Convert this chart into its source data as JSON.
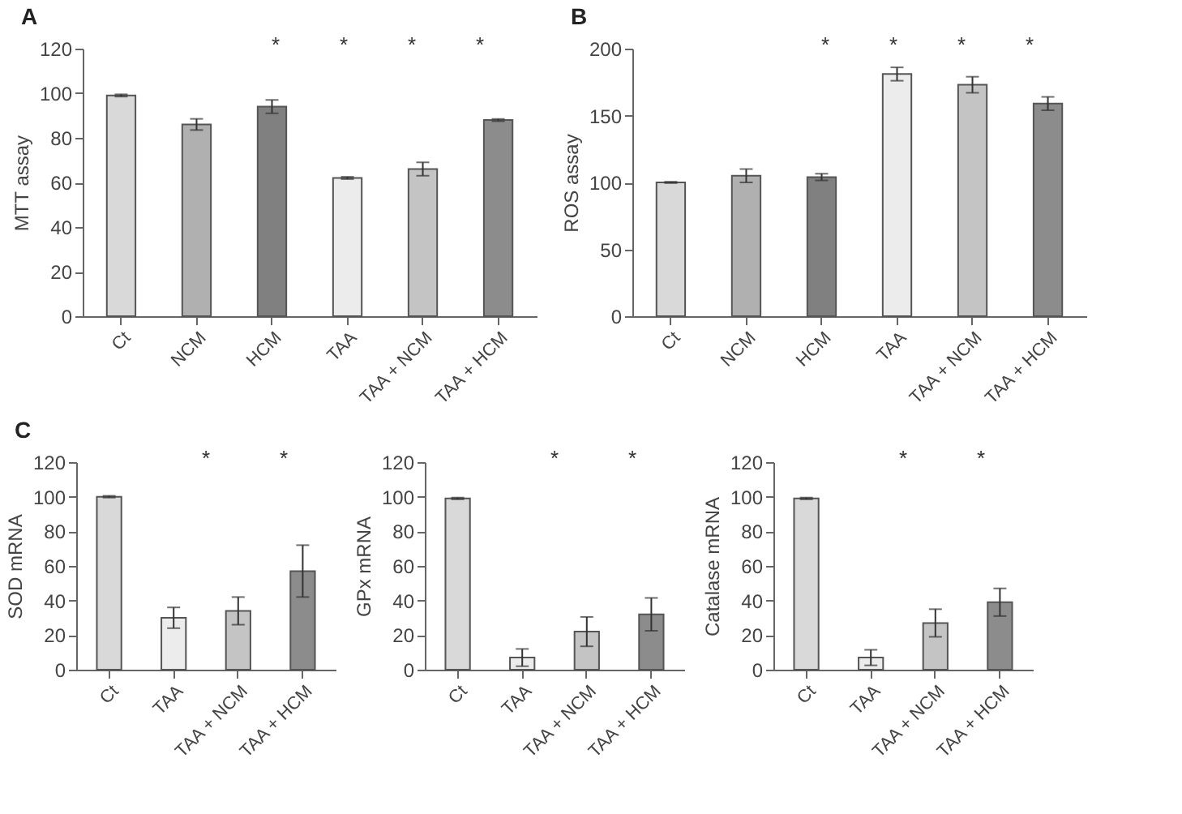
{
  "chart_data": [
    {
      "type": "bar",
      "title": "A",
      "ylabel": "MTT assay",
      "categories": [
        "Ct",
        "NCM",
        "HCM",
        "TAA",
        "TAA + NCM",
        "TAA + HCM"
      ],
      "values": [
        99,
        86,
        94,
        62,
        66,
        88
      ],
      "errors": [
        0.5,
        2.5,
        3,
        0.5,
        3,
        0.5
      ],
      "colors": [
        "#d9d9d9",
        "#b0b0b0",
        "#808080",
        "#ececec",
        "#c4c4c4",
        "#8c8c8c"
      ],
      "ylim": [
        0,
        120
      ],
      "yticks": [
        0,
        20,
        40,
        60,
        80,
        100,
        120
      ],
      "grid": false,
      "annotations": [
        "*",
        "*",
        "*",
        "*"
      ]
    },
    {
      "type": "bar",
      "title": "B",
      "ylabel": "ROS assay",
      "categories": [
        "Ct",
        "NCM",
        "HCM",
        "TAA",
        "TAA + NCM",
        "TAA + HCM"
      ],
      "values": [
        100,
        105,
        104,
        181,
        173,
        159
      ],
      "errors": [
        0.5,
        5,
        2.5,
        5,
        6,
        5
      ],
      "colors": [
        "#d9d9d9",
        "#b0b0b0",
        "#808080",
        "#ececec",
        "#c4c4c4",
        "#8c8c8c"
      ],
      "ylim": [
        0,
        200
      ],
      "yticks": [
        0,
        50,
        100,
        150,
        200
      ],
      "grid": false,
      "annotations": [
        "*",
        "*",
        "*",
        "*"
      ]
    },
    {
      "type": "bar",
      "title": "C",
      "ylabel": "SOD mRNA",
      "categories": [
        "Ct",
        "TAA",
        "TAA + NCM",
        "TAA + HCM"
      ],
      "values": [
        100,
        30,
        34,
        57
      ],
      "errors": [
        0.5,
        6,
        8,
        15
      ],
      "colors": [
        "#d9d9d9",
        "#ececec",
        "#c4c4c4",
        "#8c8c8c"
      ],
      "ylim": [
        0,
        120
      ],
      "yticks": [
        0,
        20,
        40,
        60,
        80,
        100,
        120
      ],
      "grid": false,
      "annotations": [
        "*",
        "*"
      ]
    },
    {
      "type": "bar",
      "ylabel": "GPx mRNA",
      "categories": [
        "Ct",
        "TAA",
        "TAA + NCM",
        "TAA + HCM"
      ],
      "values": [
        99,
        7,
        22,
        32
      ],
      "errors": [
        0.5,
        5,
        8.5,
        9.5
      ],
      "colors": [
        "#d9d9d9",
        "#ececec",
        "#c4c4c4",
        "#8c8c8c"
      ],
      "ylim": [
        0,
        120
      ],
      "yticks": [
        0,
        20,
        40,
        60,
        80,
        100,
        120
      ],
      "grid": false,
      "annotations": [
        "*",
        "*"
      ]
    },
    {
      "type": "bar",
      "ylabel": "Catalase mRNA",
      "categories": [
        "Ct",
        "TAA",
        "TAA + NCM",
        "TAA + HCM"
      ],
      "values": [
        99,
        7,
        27,
        39
      ],
      "errors": [
        0.5,
        4.5,
        8,
        8
      ],
      "colors": [
        "#d9d9d9",
        "#ececec",
        "#c4c4c4",
        "#8c8c8c"
      ],
      "ylim": [
        0,
        120
      ],
      "yticks": [
        0,
        20,
        40,
        60,
        80,
        100,
        120
      ],
      "grid": false,
      "annotations": [
        "*",
        "*"
      ]
    }
  ]
}
